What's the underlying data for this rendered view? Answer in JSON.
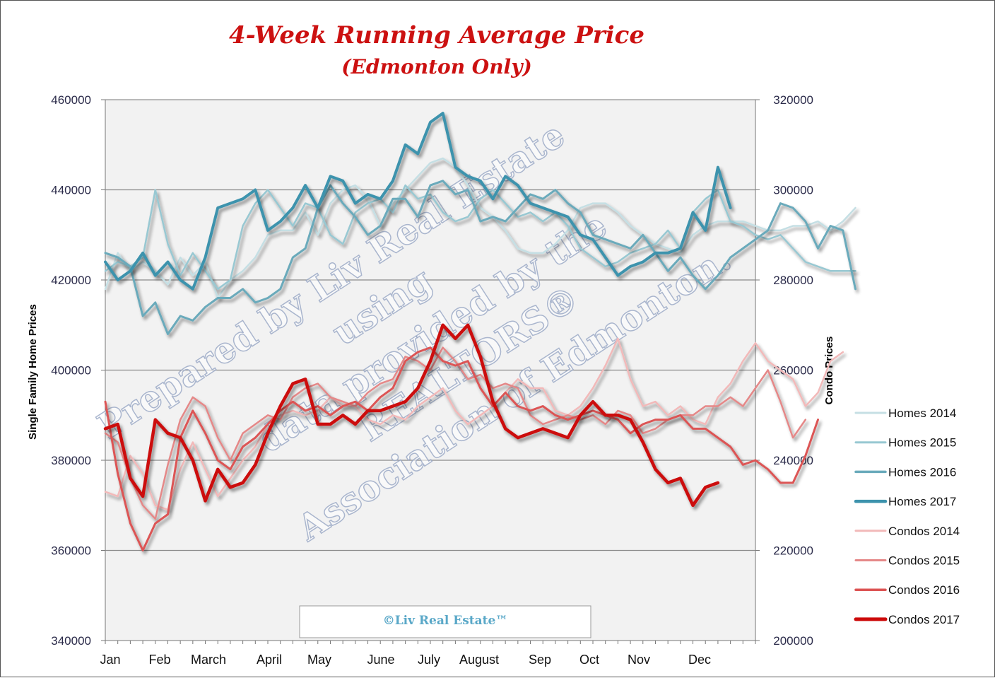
{
  "chart_data": {
    "type": "line",
    "title": "4-Week Running Average Price",
    "subtitle": "(Edmonton Only)",
    "ylabel_left": "Single Family Home Prices",
    "ylabel_right": "Condo Prices",
    "ylim_left": [
      340000,
      460000
    ],
    "ylim_right": [
      200000,
      320000
    ],
    "yticks_left": [
      "340000",
      "360000",
      "380000",
      "400000",
      "420000",
      "440000",
      "460000"
    ],
    "yticks_right": [
      "200000",
      "220000",
      "240000",
      "260000",
      "280000",
      "300000",
      "320000"
    ],
    "months": [
      "Jan",
      "Feb",
      "March",
      "April",
      "May",
      "June",
      "July",
      "August",
      "Sep",
      "Oct",
      "Nov",
      "Dec"
    ],
    "copyright": "©Liv Real Estate™",
    "watermark": [
      "Prepared by Liv Real Estate",
      "using",
      "data provided by the",
      "REALTORS®",
      "Association of Edmonton."
    ],
    "colors": {
      "homes2014": "#c5dfe4",
      "homes2015": "#98c8d2",
      "homes2016": "#6aaabb",
      "homes2017": "#3d93ad",
      "condos2014": "#f2b9b9",
      "condos2015": "#e58888",
      "condos2016": "#dc5454",
      "condos2017": "#cc0a0a"
    },
    "series": [
      {
        "name": "Homes 2014",
        "axis": "left",
        "key": "homes2014",
        "width": 2.5,
        "values": [
          418000,
          426000,
          422000,
          424000,
          422000,
          419000,
          425000,
          421000,
          424000,
          416000,
          420000,
          422000,
          425000,
          430000,
          431000,
          431000,
          435000,
          430000,
          437000,
          440000,
          441000,
          438000,
          432000,
          437000,
          440000,
          443000,
          446000,
          447000,
          445000,
          441000,
          436000,
          434000,
          431000,
          427000,
          426000,
          426000,
          428000,
          431000,
          436000,
          437000,
          437000,
          435000,
          432000,
          430000,
          428000,
          427000,
          426000,
          430000,
          432000,
          433000,
          433000,
          433000,
          432000,
          431000,
          431000,
          432000,
          432000,
          433000,
          431000,
          433000,
          436000
        ]
      },
      {
        "name": "Homes 2015",
        "axis": "left",
        "key": "homes2015",
        "width": 2.5,
        "values": [
          422000,
          424000,
          423000,
          425000,
          440000,
          428000,
          421000,
          426000,
          422000,
          418000,
          420000,
          432000,
          437000,
          440000,
          436000,
          432000,
          437000,
          436000,
          430000,
          428000,
          435000,
          437000,
          438000,
          435000,
          441000,
          438000,
          439000,
          435000,
          433000,
          434000,
          438000,
          440000,
          437000,
          434000,
          435000,
          433000,
          435000,
          432000,
          427000,
          425000,
          423000,
          424000,
          426000,
          427000,
          428000,
          431000,
          427000,
          435000,
          438000,
          440000,
          433000,
          432000,
          430000,
          429000,
          430000,
          427000,
          424000,
          423000,
          422000,
          422000,
          422000
        ]
      },
      {
        "name": "Homes 2016",
        "axis": "left",
        "key": "homes2016",
        "width": 3,
        "values": [
          426000,
          425000,
          423000,
          412000,
          415000,
          408000,
          412000,
          411000,
          414000,
          416000,
          416000,
          418000,
          415000,
          416000,
          418000,
          425000,
          427000,
          436000,
          441000,
          437000,
          434000,
          430000,
          432000,
          438000,
          438000,
          434000,
          441000,
          442000,
          439000,
          440000,
          433000,
          434000,
          433000,
          436000,
          439000,
          438000,
          440000,
          437000,
          435000,
          430000,
          429000,
          428000,
          427000,
          430000,
          426000,
          422000,
          425000,
          421000,
          418000,
          421000,
          425000,
          427000,
          429000,
          431000,
          437000,
          436000,
          433000,
          427000,
          432000,
          431000,
          418000
        ]
      },
      {
        "name": "Homes 2017",
        "axis": "left",
        "key": "homes2017",
        "width": 4,
        "values": [
          424000,
          420000,
          422000,
          426000,
          421000,
          424000,
          420000,
          418000,
          425000,
          436000,
          437000,
          438000,
          440000,
          431000,
          433000,
          436000,
          441000,
          436000,
          443000,
          442000,
          437000,
          439000,
          438000,
          442000,
          450000,
          448000,
          455000,
          457000,
          445000,
          443000,
          442000,
          438000,
          443000,
          441000,
          437000,
          436000,
          435000,
          434000,
          430000,
          429000,
          425000,
          421000,
          423000,
          424000,
          426000,
          426000,
          427000,
          435000,
          431000,
          445000,
          436000
        ]
      },
      {
        "name": "Condos 2014",
        "axis": "right",
        "key": "condos2014",
        "width": 2.5,
        "values": [
          233000,
          232000,
          241000,
          237000,
          230000,
          229000,
          238000,
          244000,
          238000,
          232000,
          236000,
          240000,
          243000,
          248000,
          250000,
          251000,
          250000,
          251000,
          254000,
          252000,
          252000,
          249000,
          248000,
          250000,
          249000,
          252000,
          254000,
          256000,
          251000,
          248000,
          250000,
          252000,
          255000,
          258000,
          256000,
          256000,
          251000,
          250000,
          252000,
          256000,
          261000,
          267000,
          258000,
          252000,
          253000,
          250000,
          252000,
          249000,
          248000,
          254000,
          257000,
          262000,
          266000,
          262000,
          260000,
          258000,
          252000,
          255000,
          262000,
          264000
        ]
      },
      {
        "name": "Condos 2015",
        "axis": "right",
        "key": "condos2015",
        "width": 2.5,
        "values": [
          246000,
          244000,
          236000,
          230000,
          227000,
          239000,
          249000,
          254000,
          252000,
          245000,
          240000,
          246000,
          248000,
          250000,
          249000,
          254000,
          256000,
          257000,
          254000,
          253000,
          252000,
          255000,
          257000,
          258000,
          263000,
          262000,
          260000,
          265000,
          262000,
          258000,
          259000,
          256000,
          257000,
          256000,
          250000,
          248000,
          249000,
          250000,
          249000,
          250000,
          248000,
          251000,
          250000,
          246000,
          247000,
          249000,
          250000,
          250000,
          252000,
          252000,
          254000,
          252000,
          256000,
          260000,
          253000,
          245000,
          249000
        ]
      },
      {
        "name": "Condos 2016",
        "axis": "right",
        "key": "condos2016",
        "width": 3,
        "values": [
          253000,
          237000,
          226000,
          220000,
          226000,
          228000,
          245000,
          251000,
          246000,
          240000,
          238000,
          243000,
          245000,
          248000,
          251000,
          253000,
          251000,
          252000,
          250000,
          252000,
          253000,
          251000,
          254000,
          256000,
          262000,
          264000,
          265000,
          262000,
          261000,
          262000,
          256000,
          252000,
          255000,
          252000,
          251000,
          252000,
          250000,
          249000,
          250000,
          251000,
          250000,
          249000,
          246000,
          248000,
          249000,
          249000,
          250000,
          247000,
          247000,
          245000,
          243000,
          239000,
          240000,
          238000,
          235000,
          235000,
          241000,
          249000
        ]
      },
      {
        "name": "Condos 2017",
        "axis": "right",
        "key": "condos2017",
        "width": 4.5,
        "values": [
          247000,
          248000,
          236000,
          232000,
          249000,
          246000,
          245000,
          240000,
          231000,
          238000,
          234000,
          235000,
          239000,
          246000,
          252000,
          257000,
          258000,
          248000,
          248000,
          250000,
          248000,
          251000,
          251000,
          252000,
          253000,
          256000,
          262000,
          270000,
          267000,
          270000,
          263000,
          253000,
          247000,
          245000,
          246000,
          247000,
          246000,
          245000,
          250000,
          253000,
          250000,
          250000,
          249000,
          244000,
          238000,
          235000,
          236000,
          230000,
          234000,
          235000
        ]
      }
    ]
  }
}
